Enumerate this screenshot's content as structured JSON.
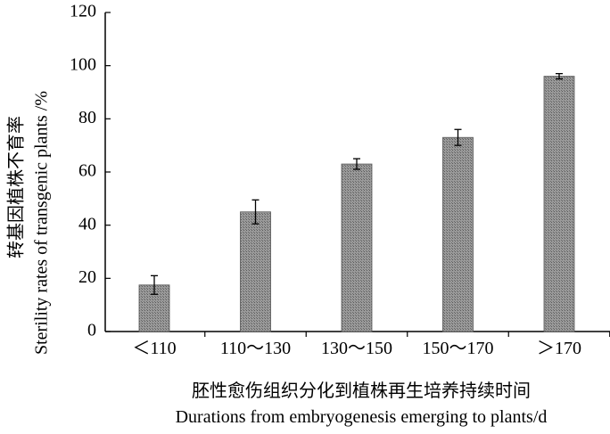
{
  "chart_data": {
    "type": "bar",
    "categories": [
      "＜110",
      "110～130",
      "130～150",
      "150～170",
      "＞170"
    ],
    "values": [
      17.5,
      45,
      63,
      73,
      96
    ],
    "errors": [
      3.5,
      4.5,
      2,
      3,
      1
    ],
    "ylim": [
      0,
      120
    ],
    "yticks": [
      0,
      20,
      40,
      60,
      80,
      100,
      120
    ],
    "ylabel_cn": "转基因植株不育率",
    "ylabel_en": "Sterility rates of transgenic plants /%",
    "xlabel_cn": "胚性愈伤组织分化到植株再生培养持续时间",
    "xlabel_en": "Durations from embryogenesis emerging to plants/d",
    "bar_color": "#8a8a8a",
    "grid": false
  }
}
